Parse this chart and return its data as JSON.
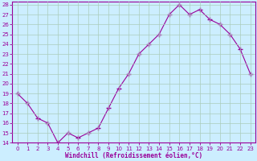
{
  "x": [
    0,
    1,
    2,
    3,
    4,
    5,
    6,
    7,
    8,
    9,
    10,
    11,
    12,
    13,
    14,
    15,
    16,
    17,
    18,
    19,
    20,
    21,
    22,
    23
  ],
  "y": [
    19.0,
    18.0,
    16.5,
    16.0,
    14.0,
    15.0,
    14.5,
    15.0,
    15.5,
    17.5,
    19.5,
    21.0,
    23.0,
    24.0,
    25.0,
    27.0,
    28.0,
    27.0,
    27.5,
    26.5,
    26.0,
    25.0,
    23.5,
    21.0
  ],
  "line_color": "#990099",
  "marker": "+",
  "marker_size": 4,
  "marker_lw": 1.0,
  "bg_color": "#cceeff",
  "grid_color": "#aaccbb",
  "xlabel": "Windchill (Refroidissement éolien,°C)",
  "ylim": [
    14,
    28
  ],
  "xlim_min": -0.5,
  "xlim_max": 23.5,
  "yticks": [
    14,
    15,
    16,
    17,
    18,
    19,
    20,
    21,
    22,
    23,
    24,
    25,
    26,
    27,
    28
  ],
  "xtick_labels": [
    "0",
    "1",
    "2",
    "3",
    "4",
    "5",
    "6",
    "7",
    "8",
    "9",
    "10",
    "11",
    "12",
    "13",
    "14",
    "15",
    "16",
    "17",
    "18",
    "19",
    "20",
    "21",
    "22",
    "23"
  ],
  "xlabel_color": "#990099",
  "tick_color": "#990099",
  "spine_color": "#990099",
  "tick_fontsize": 5.0,
  "xlabel_fontsize": 5.5,
  "linewidth": 0.8
}
